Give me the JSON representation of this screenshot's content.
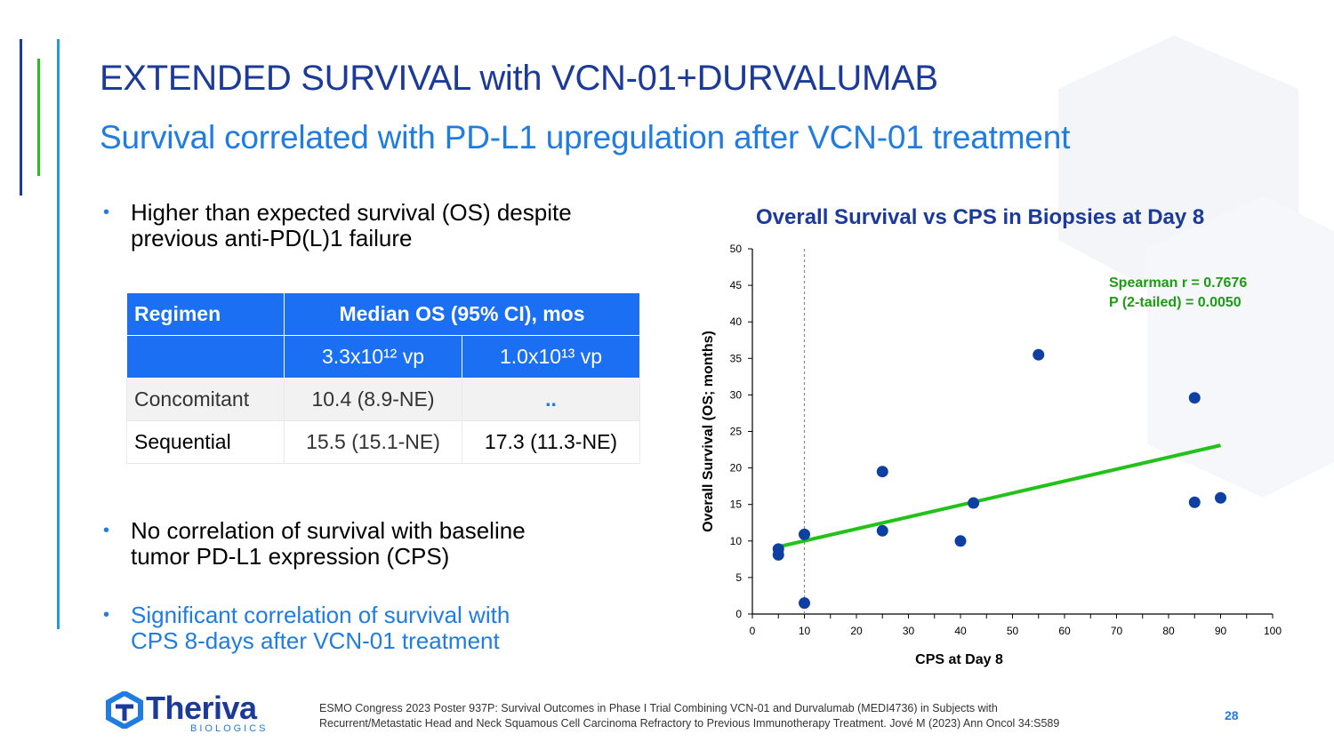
{
  "slide": {
    "title": "EXTENDED SURVIVAL with VCN-01+DURVALUMAB",
    "subtitle": "Survival correlated with PD-L1 upregulation after VCN-01 treatment",
    "bullets": [
      {
        "line1": "Higher than expected survival (OS) despite",
        "line2": "previous anti-PD(L)1 failure",
        "color": "#000000"
      },
      {
        "line1": "No correlation of survival with baseline",
        "line2": "tumor PD-L1 expression (CPS)",
        "color": "#000000"
      },
      {
        "line1": "Significant correlation of survival with",
        "line2": "CPS 8-days after VCN-01 treatment",
        "color": "#1f7ce0"
      }
    ],
    "bullet_symbol": "•",
    "page_number": "28"
  },
  "table": {
    "header": {
      "col1": "Regimen",
      "col2": "Median OS (95% CI), mos"
    },
    "subheader": {
      "dose1": "3.3x10¹²  vp",
      "dose2": "1.0x10¹³ vp"
    },
    "rows": [
      {
        "regimen": "Concomitant",
        "dose1": "10.4 (8.9-NE)",
        "dose2": ".."
      },
      {
        "regimen": "Sequential",
        "dose1": "15.5 (15.1-NE)",
        "dose2": "17.3 (11.3-NE)"
      }
    ]
  },
  "chart_data": {
    "type": "scatter",
    "title": "Overall Survival vs CPS in Biopsies at Day 8",
    "xlabel": "CPS at Day 8",
    "ylabel": "Overall Survival (OS; months)",
    "xlim": [
      0,
      100
    ],
    "ylim": [
      0,
      50
    ],
    "xticks": [
      0,
      10,
      20,
      30,
      40,
      50,
      60,
      70,
      80,
      90,
      100
    ],
    "yticks": [
      0,
      5,
      10,
      15,
      20,
      25,
      30,
      35,
      40,
      45,
      50
    ],
    "grid": false,
    "reference_line_x": 10,
    "points": [
      {
        "x": 5,
        "y": 8.9
      },
      {
        "x": 5,
        "y": 8.1
      },
      {
        "x": 10,
        "y": 10.9
      },
      {
        "x": 10,
        "y": 1.5
      },
      {
        "x": 25,
        "y": 19.5
      },
      {
        "x": 25,
        "y": 11.4
      },
      {
        "x": 40,
        "y": 10
      },
      {
        "x": 42.5,
        "y": 15.2
      },
      {
        "x": 55,
        "y": 35.5
      },
      {
        "x": 85,
        "y": 29.6
      },
      {
        "x": 85,
        "y": 15.3
      },
      {
        "x": 90,
        "y": 15.9
      }
    ],
    "trendline": {
      "x": [
        5,
        90
      ],
      "y": [
        9.2,
        23.1
      ]
    },
    "annotation": {
      "line1": "Spearman r = 0.7676",
      "line2": "P (2-tailed) = 0.0050"
    },
    "colors": {
      "points": "#0e3fa3",
      "trendline": "#22c21a",
      "annotation": "#1f9a17",
      "title": "#1b3a9a"
    }
  },
  "footer": {
    "logo_name": "Theriva",
    "logo_sub": "BIOLOGICS",
    "note_line1": "ESMO Congress 2023 Poster 937P: Survival Outcomes in Phase I Trial Combining VCN-01 and Durvalumab (MEDI4736) in Subjects with",
    "note_line2": "Recurrent/Metastatic Head and Neck Squamous Cell Carcinoma Refractory to Previous Immunotherapy Treatment. Jové M (2023) Ann Oncol 34:S589"
  },
  "colors": {
    "brand_dark": "#1b3a9a",
    "brand_blue": "#1f7ce0",
    "table_header": "#1a6ff2",
    "accent_green": "#22c21a"
  }
}
